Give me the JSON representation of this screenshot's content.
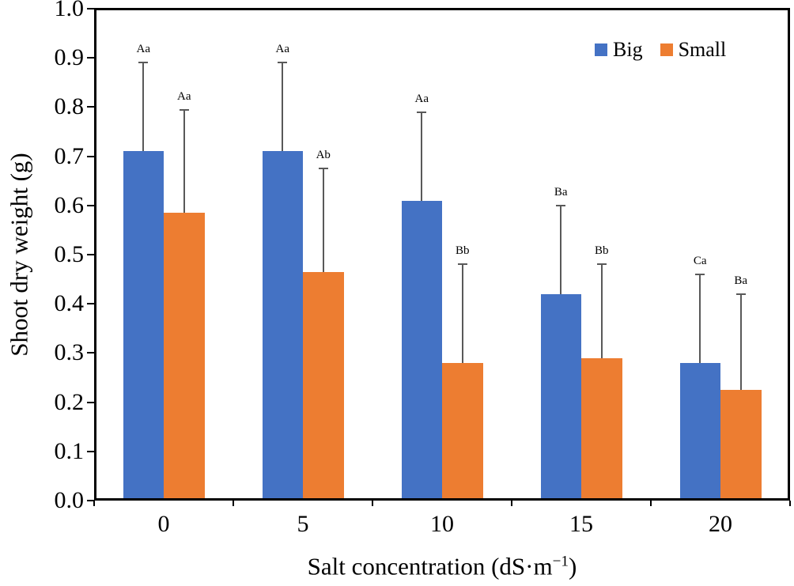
{
  "chart_data": {
    "type": "bar",
    "title": "",
    "xlabel": "Salt concentration (dS·m⁻¹)",
    "xlabel_parts": {
      "pre": "Salt concentration (dS·m",
      "sup": "−1",
      "post": ")"
    },
    "ylabel": "Shoot dry weight (g)",
    "categories": [
      "0",
      "5",
      "10",
      "15",
      "20"
    ],
    "series": [
      {
        "name": "Big",
        "color": "#4472C4",
        "values": [
          0.71,
          0.71,
          0.61,
          0.42,
          0.28
        ],
        "errors": [
          0.18,
          0.18,
          0.18,
          0.18,
          0.18
        ],
        "labels": [
          "Aa",
          "Aa",
          "Aa",
          "Ba",
          "Ca"
        ]
      },
      {
        "name": "Small",
        "color": "#ED7D31",
        "values": [
          0.585,
          0.465,
          0.28,
          0.29,
          0.225
        ],
        "errors": [
          0.21,
          0.21,
          0.2,
          0.19,
          0.195
        ],
        "labels": [
          "Aa",
          "Ab",
          "Bb",
          "Bb",
          "Ba"
        ]
      }
    ],
    "ylim": [
      0.0,
      1.0
    ],
    "yticks": [
      "0.0",
      "0.1",
      "0.2",
      "0.3",
      "0.4",
      "0.5",
      "0.6",
      "0.7",
      "0.8",
      "0.9",
      "1.0"
    ],
    "grid": false,
    "legend_position": "top-right-inside",
    "error_bar_color": "#595959",
    "axis_color": "#000000"
  }
}
